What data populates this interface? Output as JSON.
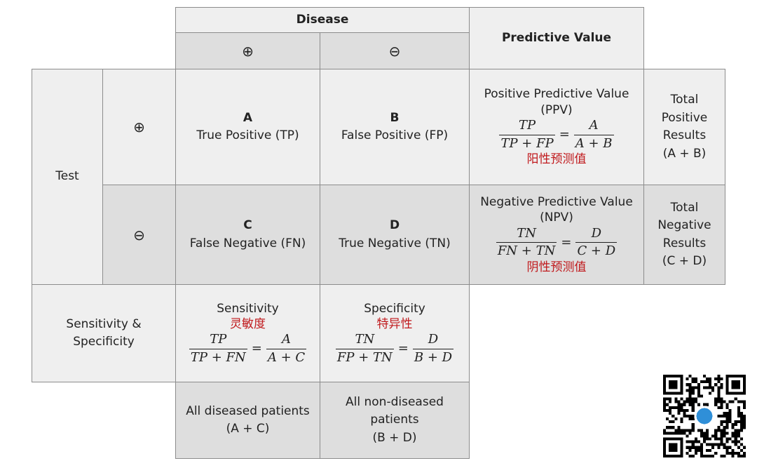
{
  "disease": {
    "title": "Disease",
    "positive_symbol": "⊕",
    "negative_symbol": "⊖"
  },
  "predictive": {
    "title": "Predictive Value"
  },
  "test": {
    "label": "Test",
    "positive_symbol": "⊕",
    "negative_symbol": "⊖"
  },
  "cells": {
    "a": {
      "letter": "A",
      "label": "True Positive (TP)"
    },
    "b": {
      "letter": "B",
      "label": "False Positive (FP)"
    },
    "c": {
      "letter": "C",
      "label": "False Negative (FN)"
    },
    "d": {
      "letter": "D",
      "label": "True Negative (TN)"
    }
  },
  "ppv": {
    "title_line1": "Positive Predictive Value",
    "title_line2": "(PPV)",
    "num_left": "TP",
    "den_left": "TP + FP",
    "equals": "=",
    "num_right": "A",
    "den_right": "A + B",
    "chinese": "阳性预测值"
  },
  "npv": {
    "title_line1": "Negative Predictive Value",
    "title_line2": "(NPV)",
    "num_left": "TN",
    "den_left": "FN + TN",
    "equals": "=",
    "num_right": "D",
    "den_right": "C + D",
    "chinese": "阴性预测值"
  },
  "totals": {
    "positive": [
      "Total",
      "Positive",
      "Results",
      "(A + B)"
    ],
    "negative": [
      "Total",
      "Negative",
      "Results",
      "(C + D)"
    ]
  },
  "sens_spec": {
    "label_line1": "Sensitivity &",
    "label_line2": "Specificity"
  },
  "sensitivity": {
    "title": "Sensitivity",
    "chinese": "灵敏度",
    "num_left": "TP",
    "den_left": "TP + FN",
    "equals": "=",
    "num_right": "A",
    "den_right": "A + C"
  },
  "specificity": {
    "title": "Specificity",
    "chinese": "特异性",
    "num_left": "TN",
    "den_left": "FP + TN",
    "equals": "=",
    "num_right": "D",
    "den_right": "B + D"
  },
  "bottom": {
    "diseased_line1": "All diseased patients",
    "diseased_line2": "(A + C)",
    "nondiseased_line1": "All non-diseased",
    "nondiseased_line2": "patients",
    "nondiseased_line3": "(B + D)"
  }
}
